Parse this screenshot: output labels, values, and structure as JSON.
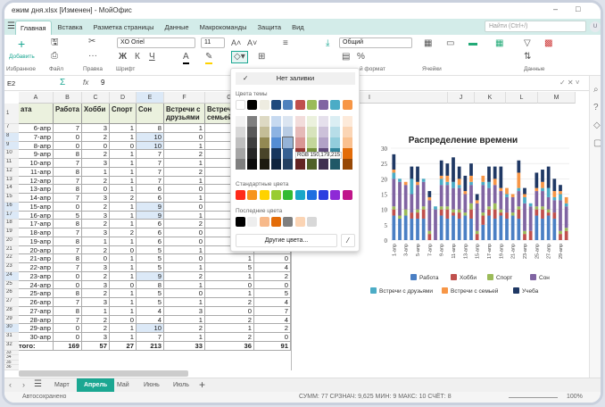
{
  "window": {
    "title": "ежим дня.xlsx [Изменен] - МойОфис",
    "minimize": "–",
    "maximize": "□"
  },
  "ribbon_tabs": [
    "Главная",
    "Вставка",
    "Разметка страницы",
    "Данные",
    "Макрокоманды",
    "Защита",
    "Вид"
  ],
  "search": {
    "placeholder": "Найти (Ctrl+/)"
  },
  "user_initial": "U",
  "ribbon": {
    "add_label": "Добавить",
    "groups": [
      "Избранное",
      "Файл",
      "Правка",
      "Шрифт",
      "й формат",
      "Ячейки",
      "Данные"
    ],
    "font_name": "XO Oriel",
    "font_size": "11",
    "number_format": "Общий",
    "bold": "Ж",
    "italic": "К",
    "underline": "Ч"
  },
  "formula_bar": {
    "cell_ref": "E2",
    "value": "9",
    "sum_icon": "Σ",
    "fx_icon": "fx"
  },
  "columns": [
    "A",
    "B",
    "C",
    "D",
    "E",
    "F",
    "G",
    "H",
    "I",
    "J",
    "K",
    "L",
    "M"
  ],
  "sheet": {
    "headers": [
      "ата",
      "Работа",
      "Хобби",
      "Спорт",
      "Сон",
      "Встречи с друзьями",
      "Встречи с семьей"
    ],
    "rows": [
      {
        "n": "7",
        "date": "6-апр",
        "v": [
          "7",
          "3",
          "1",
          "8",
          "1"
        ]
      },
      {
        "n": "8",
        "date": "7-апр",
        "v": [
          "0",
          "2",
          "1",
          "10",
          "0"
        ]
      },
      {
        "n": "9",
        "date": "8-апр",
        "v": [
          "0",
          "0",
          "0",
          "10",
          "1"
        ]
      },
      {
        "n": "10",
        "date": "9-апр",
        "v": [
          "8",
          "2",
          "1",
          "7",
          "2"
        ]
      },
      {
        "n": "11",
        "date": "10-апр",
        "v": [
          "7",
          "3",
          "1",
          "7",
          "1"
        ]
      },
      {
        "n": "12",
        "date": "11-апр",
        "v": [
          "8",
          "1",
          "1",
          "7",
          "2"
        ]
      },
      {
        "n": "13",
        "date": "12-апр",
        "v": [
          "7",
          "2",
          "1",
          "7",
          "1"
        ]
      },
      {
        "n": "14",
        "date": "13-апр",
        "v": [
          "8",
          "0",
          "1",
          "6",
          "0"
        ]
      },
      {
        "n": "15",
        "date": "14-апр",
        "v": [
          "7",
          "3",
          "2",
          "6",
          "1"
        ]
      },
      {
        "n": "16",
        "date": "15-апр",
        "v": [
          "0",
          "2",
          "1",
          "9",
          "0"
        ]
      },
      {
        "n": "17",
        "date": "16-апр",
        "v": [
          "5",
          "3",
          "1",
          "9",
          "1"
        ]
      },
      {
        "n": "18",
        "date": "17-апр",
        "v": [
          "8",
          "2",
          "1",
          "6",
          "2"
        ]
      },
      {
        "n": "19",
        "date": "18-апр",
        "v": [
          "7",
          "3",
          "2",
          "6",
          "0"
        ]
      },
      {
        "n": "20",
        "date": "19-апр",
        "v": [
          "8",
          "1",
          "1",
          "6",
          "0"
        ]
      },
      {
        "n": "21",
        "date": "20-апр",
        "v": [
          "7",
          "2",
          "0",
          "5",
          "1"
        ]
      },
      {
        "n": "22",
        "date": "21-апр",
        "v": [
          "8",
          "0",
          "1",
          "5",
          "0",
          "1",
          "0"
        ]
      },
      {
        "n": "23",
        "date": "22-апр",
        "v": [
          "7",
          "3",
          "1",
          "5",
          "1",
          "5",
          "4"
        ]
      },
      {
        "n": "24",
        "date": "23-апр",
        "v": [
          "0",
          "2",
          "1",
          "9",
          "2",
          "1",
          "2"
        ]
      },
      {
        "n": "25",
        "date": "24-апр",
        "v": [
          "0",
          "3",
          "0",
          "8",
          "1",
          "0",
          "0"
        ]
      },
      {
        "n": "26",
        "date": "25-апр",
        "v": [
          "8",
          "2",
          "1",
          "5",
          "0",
          "1",
          "5"
        ]
      },
      {
        "n": "27",
        "date": "26-апр",
        "v": [
          "7",
          "3",
          "1",
          "5",
          "1",
          "2",
          "4"
        ]
      },
      {
        "n": "28",
        "date": "27-апр",
        "v": [
          "8",
          "1",
          "1",
          "4",
          "3",
          "0",
          "7"
        ]
      },
      {
        "n": "29",
        "date": "28-апр",
        "v": [
          "7",
          "2",
          "0",
          "4",
          "1",
          "2",
          "4"
        ]
      },
      {
        "n": "30",
        "date": "29-апр",
        "v": [
          "0",
          "2",
          "1",
          "10",
          "2",
          "1",
          "2"
        ]
      },
      {
        "n": "31",
        "date": "30-апр",
        "v": [
          "0",
          "3",
          "1",
          "7",
          "1",
          "2",
          "0"
        ]
      }
    ],
    "total": {
      "n": "32",
      "label": "того:",
      "v": [
        "169",
        "57",
        "27",
        "213",
        "33",
        "36",
        "91"
      ]
    },
    "empty_rows": [
      "33",
      "34",
      "35",
      "36"
    ],
    "highlighted_sleep_rows": [
      "8",
      "9",
      "16",
      "17",
      "24",
      "30"
    ]
  },
  "fill_popup": {
    "no_fill": "Нет заливки",
    "theme_label": "Цвета темы",
    "theme": [
      "#ffffff",
      "#000000",
      "#eeece1",
      "#1f497d",
      "#4f81bd",
      "#c0504d",
      "#9bbb59",
      "#8064a2",
      "#4bacc6",
      "#f79646"
    ],
    "shades": [
      [
        "#f2f2f2",
        "#7f7f7f",
        "#ddd9c3",
        "#c6d9f0",
        "#dbe5f1",
        "#f2dcdb",
        "#ebf1dd",
        "#e5e0ec",
        "#dbeef3",
        "#fdeada"
      ],
      [
        "#d8d8d8",
        "#595959",
        "#c4bd97",
        "#8db3e2",
        "#b8cce4",
        "#e5b9b7",
        "#d7e3bc",
        "#ccc1d9",
        "#b7dde8",
        "#fbd5b5"
      ],
      [
        "#bfbfbf",
        "#3f3f3f",
        "#938953",
        "#548dd4",
        "#95b3d7",
        "#d99694",
        "#c3d69b",
        "#b2a2c7",
        "#92cddc",
        "#fac08f"
      ],
      [
        "#a5a5a5",
        "#262626",
        "#494429",
        "#17365d",
        "#366092",
        "#953734",
        "#76923c",
        "#5f497a",
        "#31859b",
        "#e36c09"
      ],
      [
        "#7f7f7f",
        "#0c0c0c",
        "#1d1b10",
        "#0f243e",
        "#244061",
        "#632423",
        "#4f6128",
        "#3f3151",
        "#205867",
        "#974806"
      ]
    ],
    "tooltip": "RGB 150,179,215",
    "standard_label": "Стандартные цвета",
    "standard": [
      "#ff2a1a",
      "#f7941d",
      "#ffd200",
      "#99cc33",
      "#33bb33",
      "#1aa6c8",
      "#1e6fe0",
      "#2b3fe0",
      "#8e2ad6",
      "#c0168a"
    ],
    "recent_label": "Последние цвета",
    "recent": [
      "#000000",
      "#eeeeee",
      "#f7b98a",
      "#e36c09",
      "#7f7f7f",
      "#fbd4b4",
      "#d8d8d8"
    ],
    "more_colors": "Другие цвета..."
  },
  "chart_data": {
    "type": "bar",
    "stacked": true,
    "title": "Распределение времени",
    "ylim": [
      0,
      30
    ],
    "yticks": [
      0,
      5,
      10,
      15,
      20,
      25,
      30
    ],
    "grid": true,
    "legend": "bottom",
    "categories": [
      "1-апр",
      "2-апр",
      "3-апр",
      "4-апр",
      "5-апр",
      "6-апр",
      "7-апр",
      "8-апр",
      "9-апр",
      "10-апр",
      "11-апр",
      "12-апр",
      "13-апр",
      "14-апр",
      "15-апр",
      "16-апр",
      "17-апр",
      "18-апр",
      "19-апр",
      "20-апр",
      "21-апр",
      "22-апр",
      "23-апр",
      "24-апр",
      "25-апр",
      "26-апр",
      "27-апр",
      "28-апр",
      "29-апр",
      "30-апр"
    ],
    "series": [
      {
        "name": "Работа",
        "color": "#4a7fc4",
        "values": [
          8,
          7,
          8,
          7,
          7,
          7,
          0,
          0,
          8,
          7,
          8,
          7,
          8,
          7,
          0,
          5,
          8,
          7,
          8,
          7,
          8,
          7,
          0,
          0,
          8,
          7,
          8,
          7,
          0,
          0
        ]
      },
      {
        "name": "Хобби",
        "color": "#c0504d",
        "values": [
          2,
          0,
          0,
          2,
          2,
          3,
          2,
          0,
          2,
          3,
          1,
          2,
          0,
          3,
          2,
          3,
          2,
          3,
          1,
          2,
          0,
          3,
          2,
          3,
          2,
          3,
          1,
          2,
          2,
          3
        ]
      },
      {
        "name": "Спорт",
        "color": "#9bbb59",
        "values": [
          1,
          1,
          2,
          0,
          1,
          1,
          1,
          0,
          1,
          1,
          1,
          1,
          1,
          2,
          1,
          1,
          1,
          2,
          1,
          0,
          1,
          1,
          1,
          0,
          1,
          1,
          1,
          0,
          1,
          1
        ]
      },
      {
        "name": "Сон",
        "color": "#8064a2",
        "values": [
          9,
          11,
          8,
          6,
          8,
          8,
          10,
          10,
          7,
          7,
          7,
          7,
          6,
          6,
          9,
          9,
          6,
          6,
          6,
          5,
          5,
          5,
          9,
          8,
          5,
          5,
          4,
          4,
          10,
          7
        ]
      },
      {
        "name": "Встречи с друзьями",
        "color": "#4bacc6",
        "values": [
          2,
          1,
          0,
          5,
          0,
          1,
          0,
          1,
          2,
          1,
          2,
          1,
          0,
          1,
          0,
          1,
          2,
          0,
          0,
          1,
          0,
          1,
          2,
          1,
          0,
          1,
          3,
          1,
          2,
          1
        ]
      },
      {
        "name": "Встречи с семьей",
        "color": "#f79646",
        "values": [
          1,
          0,
          1,
          0,
          1,
          0,
          1,
          0,
          1,
          2,
          0,
          2,
          1,
          2,
          1,
          2,
          0,
          2,
          1,
          2,
          1,
          5,
          1,
          0,
          1,
          2,
          0,
          2,
          1,
          2
        ]
      },
      {
        "name": "Учеба",
        "color": "#1f3864",
        "values": [
          5,
          0,
          0,
          4,
          5,
          0,
          2,
          0,
          5,
          4,
          8,
          4,
          5,
          4,
          2,
          0,
          5,
          4,
          7,
          0,
          0,
          4,
          2,
          0,
          5,
          4,
          7,
          4,
          2,
          0
        ]
      }
    ]
  },
  "sheet_tabs": [
    "Март",
    "Апрель",
    "Май",
    "Июнь",
    "Июль"
  ],
  "active_sheet": "Апрель",
  "status": {
    "left": "Автосохранено",
    "stats": "СУММ: 77  СРЗНАЧ: 9,625  МИН: 9  МАКС: 10  СЧЁТ: 8",
    "zoom": "100%"
  }
}
